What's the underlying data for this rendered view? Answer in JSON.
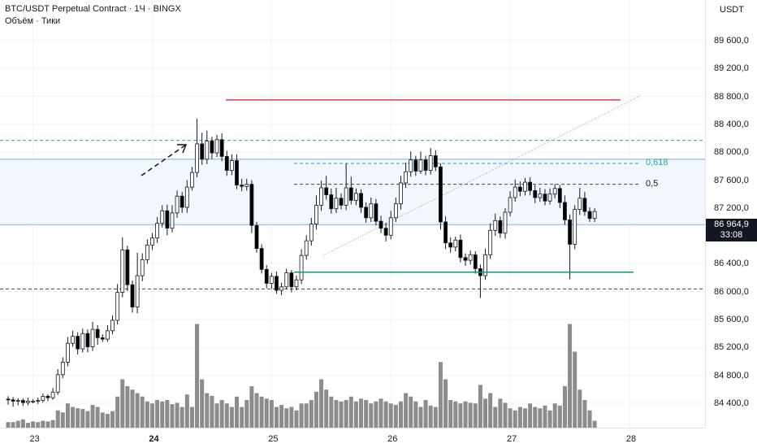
{
  "header": {
    "title": "BTC/USDT Perpetual Contract · 1Ч · BINGX",
    "indicator": "Объём · Тики"
  },
  "price_axis": {
    "currency": "USDT",
    "labels": [
      {
        "value": 89600,
        "text": "89 600,0"
      },
      {
        "value": 89200,
        "text": "89 200,0"
      },
      {
        "value": 88800,
        "text": "88 800,0"
      },
      {
        "value": 88400,
        "text": "88 400,0"
      },
      {
        "value": 88000,
        "text": "88 000,0"
      },
      {
        "value": 87600,
        "text": "87 600,0"
      },
      {
        "value": 87200,
        "text": "87 200,0"
      },
      {
        "value": 86400,
        "text": "86 400,0"
      },
      {
        "value": 86000,
        "text": "86 000,0"
      },
      {
        "value": 85600,
        "text": "85 600,0"
      },
      {
        "value": 85200,
        "text": "85 200,0"
      },
      {
        "value": 84800,
        "text": "84 800,0"
      },
      {
        "value": 84400,
        "text": "84 400,0"
      }
    ],
    "last_price": "86 964,9",
    "countdown": "33:08"
  },
  "time_axis": {
    "labels": [
      {
        "text": "23",
        "bold": false
      },
      {
        "text": "24",
        "bold": true
      },
      {
        "text": "25",
        "bold": false
      },
      {
        "text": "26",
        "bold": false
      },
      {
        "text": "27",
        "bold": false
      },
      {
        "text": "28",
        "bold": false
      }
    ]
  },
  "fib_labels": {
    "f618": "0,618",
    "f05": "0,5"
  },
  "colors": {
    "resistance": "#f23645",
    "support": "#089981",
    "zone_border": "#a8c7ef",
    "zone_fill": "#f1f7fd",
    "fib": "#22ab94",
    "volume": "#8c8c8c",
    "candle_bear": "#000000",
    "candle_bull": "#ffffff"
  },
  "chart_data": {
    "type": "candlestick",
    "symbol": "BTC/USDT Perpetual Contract",
    "timeframe": "1Ч",
    "exchange": "BINGX",
    "x_ticks": [
      "23",
      "24",
      "25",
      "26",
      "27",
      "28"
    ],
    "ylim": [
      84000,
      89800
    ],
    "levels": {
      "resistance": 88750,
      "support": 86280,
      "zone_top": 87900,
      "zone_bottom": 86960,
      "dashed_upper": 88170,
      "dashed_lower": 86040,
      "fib_0618": 87840,
      "fib_05": 87540
    },
    "start": {
      "o": 84460,
      "h": 84500,
      "l": 84380,
      "c": 84450
    },
    "candles": [
      {
        "d": -20,
        "h": 40,
        "l": 80,
        "v": 8
      },
      {
        "d": 10,
        "h": 30,
        "l": 60,
        "v": 10
      },
      {
        "d": -30,
        "h": 30,
        "l": 50,
        "v": 12
      },
      {
        "d": 20,
        "h": 50,
        "l": 40,
        "v": 7
      },
      {
        "d": 0,
        "h": 30,
        "l": 30,
        "v": 9
      },
      {
        "d": 10,
        "h": 40,
        "l": 40,
        "v": 8
      },
      {
        "d": 60,
        "h": 40,
        "l": 30,
        "v": 10
      },
      {
        "d": -20,
        "h": 30,
        "l": 50,
        "v": 9
      },
      {
        "d": 80,
        "h": 60,
        "l": 30,
        "v": 11
      },
      {
        "d": 250,
        "h": 80,
        "l": 40,
        "v": 25
      },
      {
        "d": 180,
        "h": 70,
        "l": 50,
        "v": 22
      },
      {
        "d": 270,
        "h": 90,
        "l": 60,
        "v": 35
      },
      {
        "d": 100,
        "h": 80,
        "l": 50,
        "v": 30
      },
      {
        "d": -180,
        "h": 60,
        "l": 80,
        "v": 28
      },
      {
        "d": 220,
        "h": 70,
        "l": 50,
        "v": 27
      },
      {
        "d": -190,
        "h": 60,
        "l": 80,
        "v": 24
      },
      {
        "d": 250,
        "h": 110,
        "l": 60,
        "v": 33
      },
      {
        "d": -120,
        "h": 60,
        "l": 100,
        "v": 30
      },
      {
        "d": -20,
        "h": 50,
        "l": 40,
        "v": 22
      },
      {
        "d": 120,
        "h": 80,
        "l": 40,
        "v": 20
      },
      {
        "d": 150,
        "h": 70,
        "l": 50,
        "v": 24
      },
      {
        "d": 400,
        "h": 120,
        "l": 60,
        "v": 45
      },
      {
        "d": 610,
        "h": 180,
        "l": 70,
        "v": 70
      },
      {
        "d": -500,
        "h": 60,
        "l": 90,
        "v": 60
      },
      {
        "d": -320,
        "h": 60,
        "l": 80,
        "v": 55
      },
      {
        "d": 450,
        "h": 330,
        "l": 90,
        "v": 50
      },
      {
        "d": 230,
        "h": 90,
        "l": 80,
        "v": 45
      },
      {
        "d": 210,
        "h": 80,
        "l": 60,
        "v": 38
      },
      {
        "d": 100,
        "h": 70,
        "l": 70,
        "v": 35
      },
      {
        "d": 210,
        "h": 90,
        "l": 70,
        "v": 40
      },
      {
        "d": 180,
        "h": 80,
        "l": 60,
        "v": 38
      },
      {
        "d": -250,
        "h": 90,
        "l": 100,
        "v": 40
      },
      {
        "d": 220,
        "h": 110,
        "l": 60,
        "v": 34
      },
      {
        "d": 240,
        "h": 80,
        "l": 70,
        "v": 36
      },
      {
        "d": -160,
        "h": 60,
        "l": 80,
        "v": 30
      },
      {
        "d": 290,
        "h": 100,
        "l": 80,
        "v": 48
      },
      {
        "d": 210,
        "h": 80,
        "l": 50,
        "v": 30
      },
      {
        "d": 410,
        "h": 360,
        "l": 70,
        "v": 150
      },
      {
        "d": -220,
        "h": 160,
        "l": 80,
        "v": 70
      },
      {
        "d": 260,
        "h": 150,
        "l": 70,
        "v": 50
      },
      {
        "d": -170,
        "h": 60,
        "l": 90,
        "v": 46
      },
      {
        "d": 190,
        "h": 70,
        "l": 60,
        "v": 35
      },
      {
        "d": -240,
        "h": 90,
        "l": 70,
        "v": 40
      },
      {
        "d": -200,
        "h": 80,
        "l": 80,
        "v": 35
      },
      {
        "d": 140,
        "h": 90,
        "l": 70,
        "v": 30
      },
      {
        "d": -350,
        "h": 90,
        "l": 60,
        "v": 45
      },
      {
        "d": -20,
        "h": 90,
        "l": 70,
        "v": 30
      },
      {
        "d": 30,
        "h": 80,
        "l": 60,
        "v": 40
      },
      {
        "d": -590,
        "h": 60,
        "l": 110,
        "v": 60
      },
      {
        "d": -330,
        "h": 50,
        "l": 60,
        "v": 50
      },
      {
        "d": -300,
        "h": 60,
        "l": 60,
        "v": 45
      },
      {
        "d": -200,
        "h": 60,
        "l": 70,
        "v": 42
      },
      {
        "d": 100,
        "h": 50,
        "l": 80,
        "v": 40
      },
      {
        "d": -200,
        "h": 70,
        "l": 50,
        "v": 30
      },
      {
        "d": 50,
        "h": 60,
        "l": 70,
        "v": 33
      },
      {
        "d": 200,
        "h": 60,
        "l": 40,
        "v": 28
      },
      {
        "d": -200,
        "h": 40,
        "l": 80,
        "v": 30
      },
      {
        "d": 100,
        "h": 60,
        "l": 50,
        "v": 25
      },
      {
        "d": 350,
        "h": 90,
        "l": 60,
        "v": 35
      },
      {
        "d": 210,
        "h": 80,
        "l": 60,
        "v": 35
      },
      {
        "d": 240,
        "h": 90,
        "l": 70,
        "v": 40
      },
      {
        "d": 270,
        "h": 140,
        "l": 80,
        "v": 52
      },
      {
        "d": 250,
        "h": 100,
        "l": 80,
        "v": 70
      },
      {
        "d": -100,
        "h": 170,
        "l": 70,
        "v": 55
      },
      {
        "d": -200,
        "h": 90,
        "l": 70,
        "v": 45
      },
      {
        "d": 150,
        "h": 150,
        "l": 60,
        "v": 40
      },
      {
        "d": -100,
        "h": 70,
        "l": 60,
        "v": 38
      },
      {
        "d": 250,
        "h": 350,
        "l": 70,
        "v": 40
      },
      {
        "d": -180,
        "h": 160,
        "l": 60,
        "v": 45
      },
      {
        "d": 100,
        "h": 70,
        "l": 70,
        "v": 38
      },
      {
        "d": -200,
        "h": 60,
        "l": 80,
        "v": 42
      },
      {
        "d": -150,
        "h": 70,
        "l": 70,
        "v": 40
      },
      {
        "d": 200,
        "h": 90,
        "l": 60,
        "v": 35
      },
      {
        "d": -250,
        "h": 70,
        "l": 60,
        "v": 38
      },
      {
        "d": -100,
        "h": 80,
        "l": 70,
        "v": 42
      },
      {
        "d": -100,
        "h": 80,
        "l": 90,
        "v": 38
      },
      {
        "d": 250,
        "h": 100,
        "l": 60,
        "v": 35
      },
      {
        "d": 200,
        "h": 90,
        "l": 60,
        "v": 33
      },
      {
        "d": 300,
        "h": 100,
        "l": 80,
        "v": 38
      },
      {
        "d": 160,
        "h": 130,
        "l": 70,
        "v": 50
      },
      {
        "d": 170,
        "h": 120,
        "l": 70,
        "v": 45
      },
      {
        "d": -160,
        "h": 60,
        "l": 70,
        "v": 38
      },
      {
        "d": 160,
        "h": 120,
        "l": 40,
        "v": 30
      },
      {
        "d": -150,
        "h": 60,
        "l": 70,
        "v": 40
      },
      {
        "d": 210,
        "h": 110,
        "l": 60,
        "v": 32
      },
      {
        "d": -160,
        "h": 80,
        "l": 60,
        "v": 30
      },
      {
        "d": -790,
        "h": 50,
        "l": 110,
        "v": 95
      },
      {
        "d": -300,
        "h": 80,
        "l": 90,
        "v": 70
      },
      {
        "d": -60,
        "h": 80,
        "l": 80,
        "v": 40
      },
      {
        "d": 100,
        "h": 50,
        "l": 60,
        "v": 38
      },
      {
        "d": -250,
        "h": 80,
        "l": 70,
        "v": 35
      },
      {
        "d": -40,
        "h": 60,
        "l": 80,
        "v": 38
      },
      {
        "d": 80,
        "h": 60,
        "l": 60,
        "v": 36
      },
      {
        "d": -200,
        "h": 50,
        "l": 70,
        "v": 35
      },
      {
        "d": -100,
        "h": 60,
        "l": 320,
        "v": 62
      },
      {
        "d": 300,
        "h": 90,
        "l": 60,
        "v": 42
      },
      {
        "d": 350,
        "h": 100,
        "l": 60,
        "v": 50
      },
      {
        "d": 140,
        "h": 100,
        "l": 80,
        "v": 30
      },
      {
        "d": -180,
        "h": 60,
        "l": 70,
        "v": 42
      },
      {
        "d": 300,
        "h": 60,
        "l": 80,
        "v": 36
      },
      {
        "d": 210,
        "h": 90,
        "l": 60,
        "v": 28
      },
      {
        "d": 150,
        "h": 110,
        "l": 60,
        "v": 25
      },
      {
        "d": -60,
        "h": 80,
        "l": 70,
        "v": 30
      },
      {
        "d": 130,
        "h": 60,
        "l": 60,
        "v": 28
      },
      {
        "d": -120,
        "h": 70,
        "l": 70,
        "v": 35
      },
      {
        "d": -100,
        "h": 80,
        "l": 80,
        "v": 30
      },
      {
        "d": 50,
        "h": 90,
        "l": 60,
        "v": 28
      },
      {
        "d": -100,
        "h": 70,
        "l": 60,
        "v": 32
      },
      {
        "d": 100,
        "h": 80,
        "l": 50,
        "v": 25
      },
      {
        "d": 80,
        "h": 60,
        "l": 60,
        "v": 35
      },
      {
        "d": -200,
        "h": 50,
        "l": 80,
        "v": 32
      },
      {
        "d": -250,
        "h": 100,
        "l": 70,
        "v": 60
      },
      {
        "d": -350,
        "h": 80,
        "l": 500,
        "v": 150
      },
      {
        "d": 500,
        "h": 60,
        "l": 70,
        "v": 110
      },
      {
        "d": 160,
        "h": 150,
        "l": 80,
        "v": 55
      },
      {
        "d": -190,
        "h": 90,
        "l": 60,
        "v": 40
      },
      {
        "d": -100,
        "h": 60,
        "l": 50,
        "v": 25
      },
      {
        "d": 100,
        "h": 50,
        "l": 50,
        "v": 10
      }
    ]
  }
}
